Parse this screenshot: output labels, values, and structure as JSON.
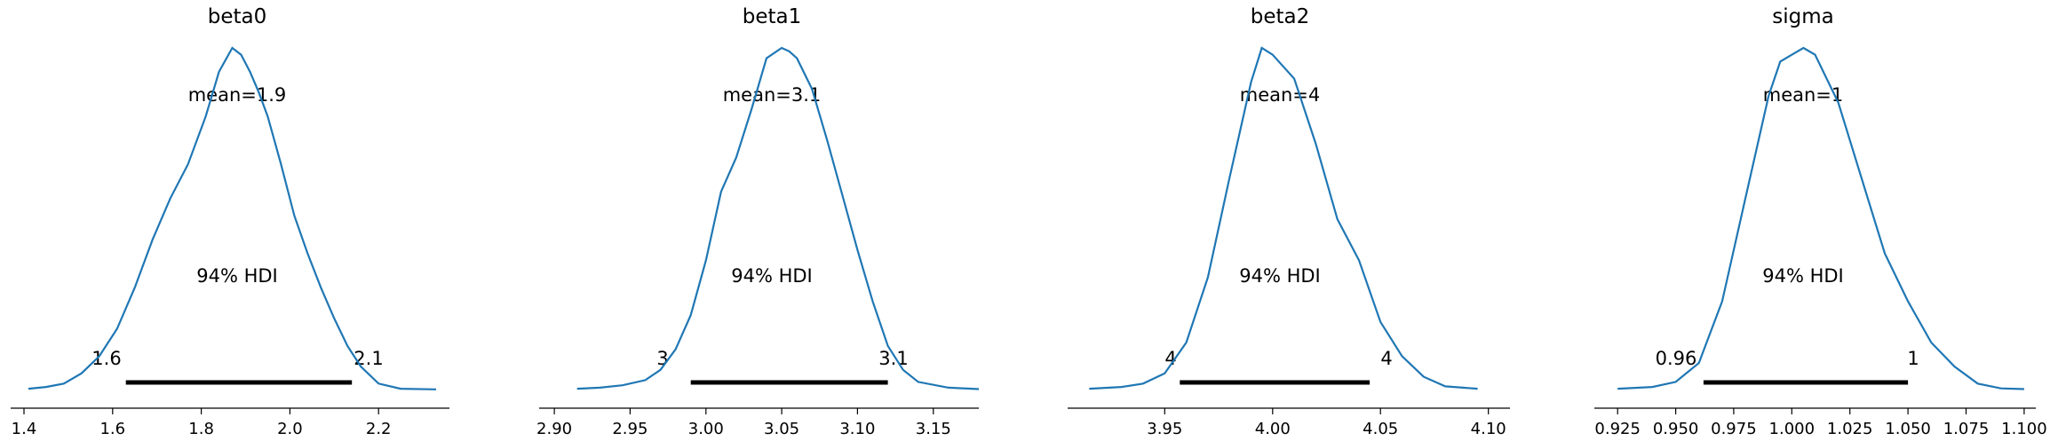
{
  "chart_data": [
    {
      "type": "line",
      "title": "beta0",
      "mean_label": "mean=1.9",
      "hdi_label": "94% HDI",
      "hdi_low_label": "1.6",
      "hdi_high_label": "2.1",
      "hdi": [
        1.63,
        2.14
      ],
      "xlim": [
        1.37,
        2.36
      ],
      "xticks": [
        1.4,
        1.6,
        1.8,
        2.0,
        2.2
      ],
      "xtick_labels": [
        "1.4",
        "1.6",
        "1.8",
        "2.0",
        "2.2"
      ],
      "density": {
        "x": [
          1.41,
          1.45,
          1.49,
          1.53,
          1.57,
          1.61,
          1.65,
          1.69,
          1.73,
          1.77,
          1.81,
          1.84,
          1.87,
          1.89,
          1.91,
          1.93,
          1.95,
          1.98,
          2.01,
          2.04,
          2.07,
          2.1,
          2.13,
          2.16,
          2.2,
          2.25,
          2.33
        ],
        "y": [
          0.005,
          0.01,
          0.02,
          0.05,
          0.1,
          0.18,
          0.3,
          0.44,
          0.56,
          0.66,
          0.8,
          0.93,
          1.0,
          0.98,
          0.93,
          0.87,
          0.8,
          0.66,
          0.51,
          0.4,
          0.3,
          0.21,
          0.13,
          0.07,
          0.02,
          0.005,
          0.003
        ]
      }
    },
    {
      "type": "line",
      "title": "beta1",
      "mean_label": "mean=3.1",
      "hdi_label": "94% HDI",
      "hdi_low_label": "3",
      "hdi_high_label": "3.1",
      "hdi": [
        2.99,
        3.12
      ],
      "xlim": [
        2.89,
        3.18
      ],
      "xticks": [
        2.9,
        2.95,
        3.0,
        3.05,
        3.1,
        3.15
      ],
      "xtick_labels": [
        "2.90",
        "2.95",
        "3.00",
        "3.05",
        "3.10",
        "3.15"
      ],
      "density": {
        "x": [
          2.915,
          2.93,
          2.945,
          2.96,
          2.97,
          2.98,
          2.99,
          3.0,
          3.01,
          3.02,
          3.03,
          3.04,
          3.05,
          3.055,
          3.06,
          3.07,
          3.08,
          3.09,
          3.1,
          3.11,
          3.12,
          3.13,
          3.14,
          3.16,
          3.18
        ],
        "y": [
          0.005,
          0.008,
          0.015,
          0.03,
          0.06,
          0.12,
          0.22,
          0.38,
          0.58,
          0.68,
          0.82,
          0.97,
          1.0,
          0.99,
          0.97,
          0.88,
          0.73,
          0.57,
          0.41,
          0.26,
          0.13,
          0.06,
          0.025,
          0.008,
          0.004
        ]
      }
    },
    {
      "type": "line",
      "title": "beta2",
      "mean_label": "mean=4",
      "hdi_label": "94% HDI",
      "hdi_low_label": "4",
      "hdi_high_label": "4",
      "hdi": [
        3.957,
        4.045
      ],
      "xlim": [
        3.905,
        4.11
      ],
      "xticks": [
        3.95,
        4.0,
        4.05,
        4.1
      ],
      "xtick_labels": [
        "3.95",
        "4.00",
        "4.05",
        "4.10"
      ],
      "density": {
        "x": [
          3.915,
          3.93,
          3.94,
          3.95,
          3.96,
          3.97,
          3.98,
          3.99,
          3.995,
          4.0,
          4.01,
          4.02,
          4.03,
          4.04,
          4.05,
          4.06,
          4.07,
          4.08,
          4.095
        ],
        "y": [
          0.005,
          0.01,
          0.02,
          0.05,
          0.14,
          0.33,
          0.62,
          0.9,
          1.0,
          0.98,
          0.91,
          0.72,
          0.5,
          0.38,
          0.2,
          0.1,
          0.04,
          0.012,
          0.005
        ]
      }
    },
    {
      "type": "line",
      "title": "sigma",
      "mean_label": "mean=1",
      "hdi_label": "94% HDI",
      "hdi_low_label": "0.96",
      "hdi_high_label": "1",
      "hdi": [
        0.962,
        1.05
      ],
      "xlim": [
        0.915,
        1.105
      ],
      "xticks": [
        0.925,
        0.95,
        0.975,
        1.0,
        1.025,
        1.05,
        1.075,
        1.1
      ],
      "xtick_labels": [
        "0.925",
        "0.950",
        "0.975",
        "1.000",
        "1.025",
        "1.050",
        "1.075",
        "1.100"
      ],
      "density": {
        "x": [
          0.925,
          0.94,
          0.95,
          0.96,
          0.97,
          0.98,
          0.99,
          0.995,
          1.0,
          1.005,
          1.01,
          1.02,
          1.03,
          1.04,
          1.05,
          1.06,
          1.07,
          1.08,
          1.09,
          1.1
        ],
        "y": [
          0.005,
          0.01,
          0.025,
          0.08,
          0.26,
          0.56,
          0.86,
          0.96,
          0.98,
          1.0,
          0.98,
          0.84,
          0.62,
          0.4,
          0.26,
          0.14,
          0.07,
          0.02,
          0.006,
          0.004
        ]
      }
    }
  ]
}
